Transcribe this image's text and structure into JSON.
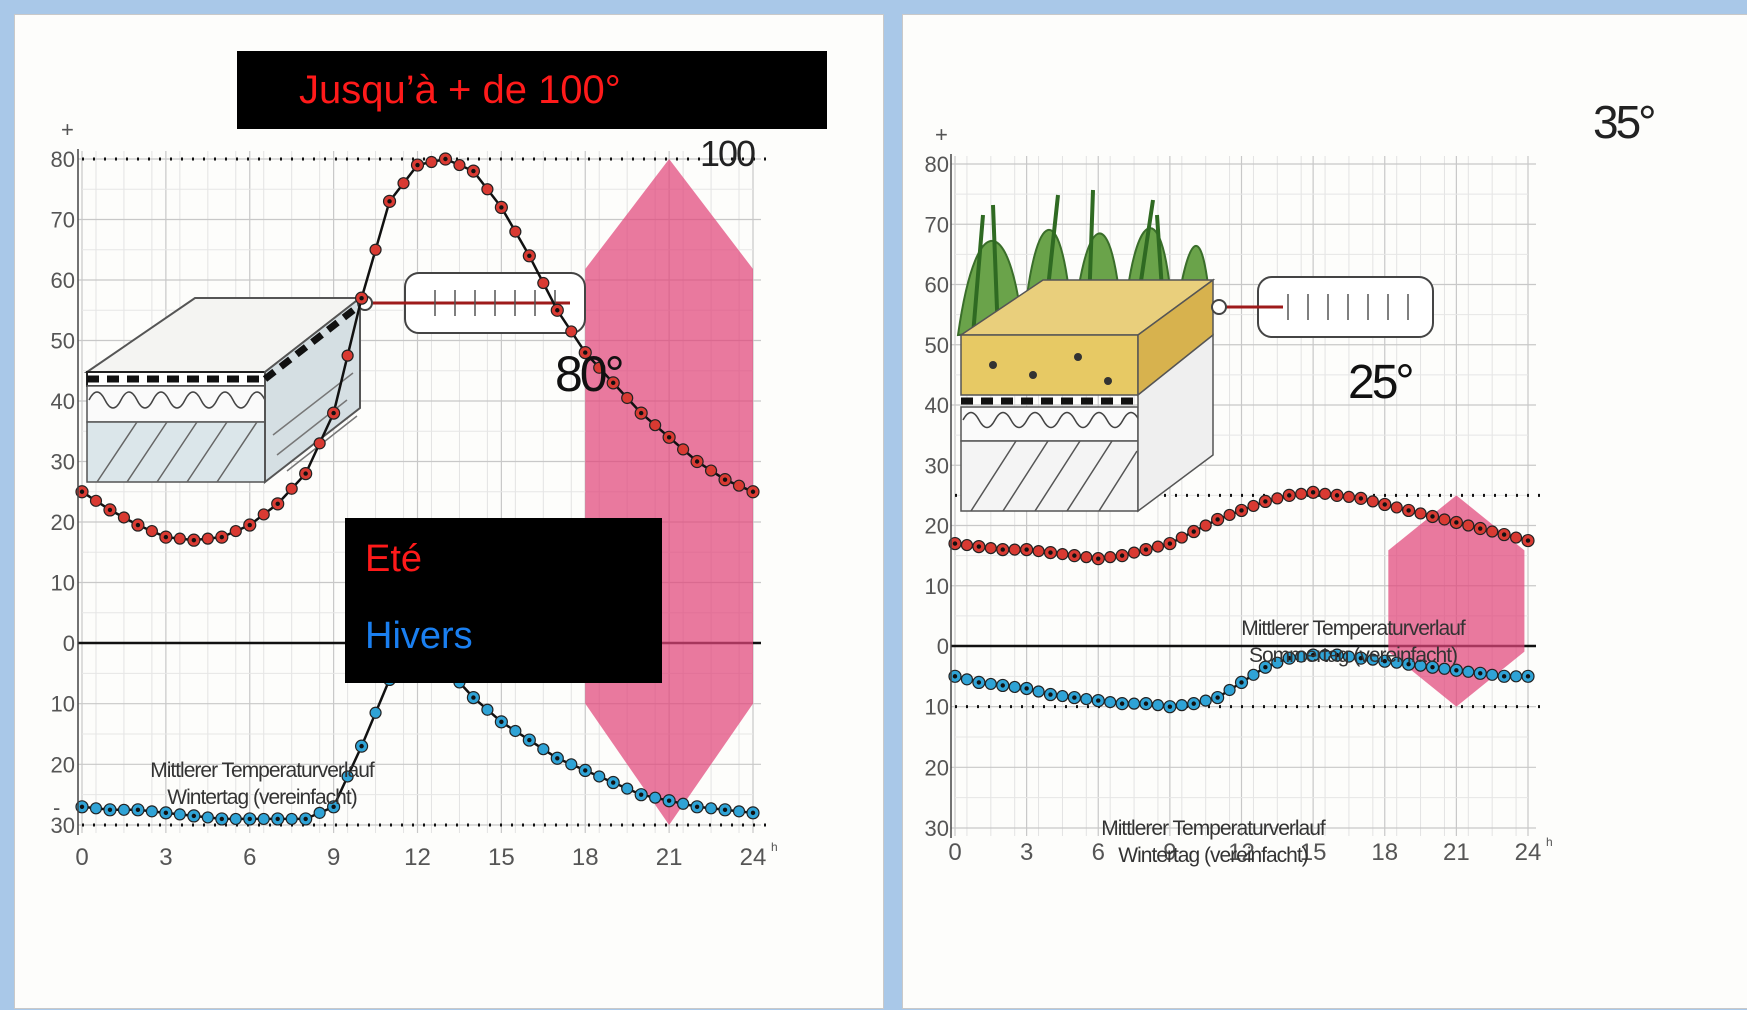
{
  "colors": {
    "summer": "#d93a32",
    "winter": "#2fa3d6",
    "warning": "#e0457a",
    "grid": "#c8c8c8",
    "overlay_bg": "#000000",
    "overlay_text_red": "#ff1a1a",
    "overlay_text_blue": "#1a7ff0"
  },
  "overlays": {
    "banner_text": "Jusqu’à + de 100°",
    "legend_summer": "Eté",
    "legend_winter": "Hivers"
  },
  "chart_data": [
    {
      "type": "line",
      "title": "",
      "xlabel": "",
      "ylabel": "",
      "xlim": [
        0,
        24
      ],
      "ylim": [
        -30,
        80
      ],
      "x_ticks": [
        0,
        3,
        6,
        9,
        12,
        15,
        18,
        21,
        24
      ],
      "x_tick_labels": [
        "0",
        "3",
        "6",
        "9",
        "12",
        "15",
        "18",
        "21",
        "24"
      ],
      "x_unit_mark": "h",
      "y_ticks": [
        80,
        70,
        60,
        50,
        40,
        30,
        20,
        10,
        0,
        -10,
        -20,
        -30
      ],
      "y_tick_labels": [
        "80",
        "70",
        "60",
        "50",
        "40",
        "30",
        "20",
        "10",
        "0",
        "10",
        "20",
        "30"
      ],
      "plus_sign": "+",
      "minus_sign": "-",
      "texts": {
        "peak_label": "100",
        "thermo_reading": "80°",
        "winter_annotation_line1": "Mittlerer Temperaturverlauf",
        "winter_annotation_line2": "Wintertag (vereinfacht)"
      },
      "series": [
        {
          "key": "summer",
          "x": [
            0,
            1,
            2,
            3,
            4,
            5,
            6,
            7,
            8,
            9,
            10,
            11,
            12,
            13,
            14,
            15,
            16,
            17,
            18,
            19,
            20,
            21,
            22,
            23,
            24
          ],
          "y": [
            25,
            22,
            19.5,
            17.5,
            17,
            17.5,
            19.5,
            23,
            28,
            38,
            57,
            73,
            79,
            80,
            78,
            72,
            64,
            55,
            48,
            43,
            38,
            34,
            30,
            27,
            25
          ]
        },
        {
          "key": "winter",
          "x": [
            0,
            1,
            2,
            3,
            4,
            5,
            6,
            7,
            8,
            9,
            10,
            11,
            12,
            13,
            14,
            15,
            16,
            17,
            18,
            19,
            20,
            21,
            22,
            23,
            24
          ],
          "y": [
            -27,
            -27.5,
            -27.5,
            -28,
            -28.5,
            -29,
            -29,
            -29,
            -29,
            -27,
            -17,
            -6,
            -3,
            -4,
            -9,
            -13,
            -16,
            -19,
            -21,
            -23,
            -25,
            -26,
            -27,
            -27.5,
            -28
          ]
        }
      ],
      "dotted_lines_y": [
        80,
        -30
      ],
      "range_marker": {
        "x_center": 21,
        "ymin": -30,
        "ymax": 80
      }
    },
    {
      "type": "line",
      "title": "",
      "xlabel": "",
      "ylabel": "",
      "xlim": [
        0,
        24
      ],
      "ylim": [
        -30,
        80
      ],
      "x_ticks": [
        0,
        3,
        6,
        9,
        12,
        15,
        18,
        21,
        24
      ],
      "x_tick_labels": [
        "0",
        "3",
        "6",
        "9",
        "12",
        "15",
        "18",
        "21",
        "24"
      ],
      "x_unit_mark": "h",
      "y_ticks": [
        80,
        70,
        60,
        50,
        40,
        30,
        20,
        10,
        0,
        -10,
        -20,
        -30
      ],
      "y_tick_labels": [
        "80",
        "70",
        "60",
        "50",
        "40",
        "30",
        "20",
        "10",
        "0",
        "10",
        "20",
        "30"
      ],
      "plus_sign": "+",
      "texts": {
        "peak_label": "35°",
        "thermo_reading": "25°",
        "summer_annotation_line1": "Mittlerer Temperaturverlauf",
        "summer_annotation_line2": "Sommertag (vereinfacht)",
        "winter_annotation_line1": "Mittlerer Temperaturverlauf",
        "winter_annotation_line2": "Wintertag (vereinfacht)"
      },
      "series": [
        {
          "key": "summer",
          "x": [
            0,
            1,
            2,
            3,
            4,
            5,
            6,
            7,
            8,
            9,
            10,
            11,
            12,
            13,
            14,
            15,
            16,
            17,
            18,
            19,
            20,
            21,
            22,
            23,
            24
          ],
          "y": [
            17,
            16.5,
            16,
            16,
            15.5,
            15,
            14.5,
            15,
            16,
            17,
            19,
            21,
            22.5,
            24,
            25,
            25.5,
            25,
            24.5,
            23.5,
            22.5,
            21.5,
            20.5,
            19.5,
            18.5,
            17.5
          ]
        },
        {
          "key": "winter",
          "x": [
            0,
            1,
            2,
            3,
            4,
            5,
            6,
            7,
            8,
            9,
            10,
            11,
            12,
            13,
            14,
            15,
            16,
            17,
            18,
            19,
            20,
            21,
            22,
            23,
            24
          ],
          "y": [
            -5,
            -6,
            -6.5,
            -7,
            -8,
            -8.5,
            -9,
            -9.5,
            -9.5,
            -10,
            -9.5,
            -8.5,
            -6,
            -3.5,
            -2,
            -1.5,
            -1.5,
            -2,
            -2.5,
            -3,
            -3.5,
            -4,
            -4.5,
            -5,
            -5
          ]
        }
      ],
      "dotted_lines_y": [
        25,
        -10
      ],
      "range_marker": {
        "x_center": 21,
        "ymin": -10,
        "ymax": 25
      }
    }
  ]
}
